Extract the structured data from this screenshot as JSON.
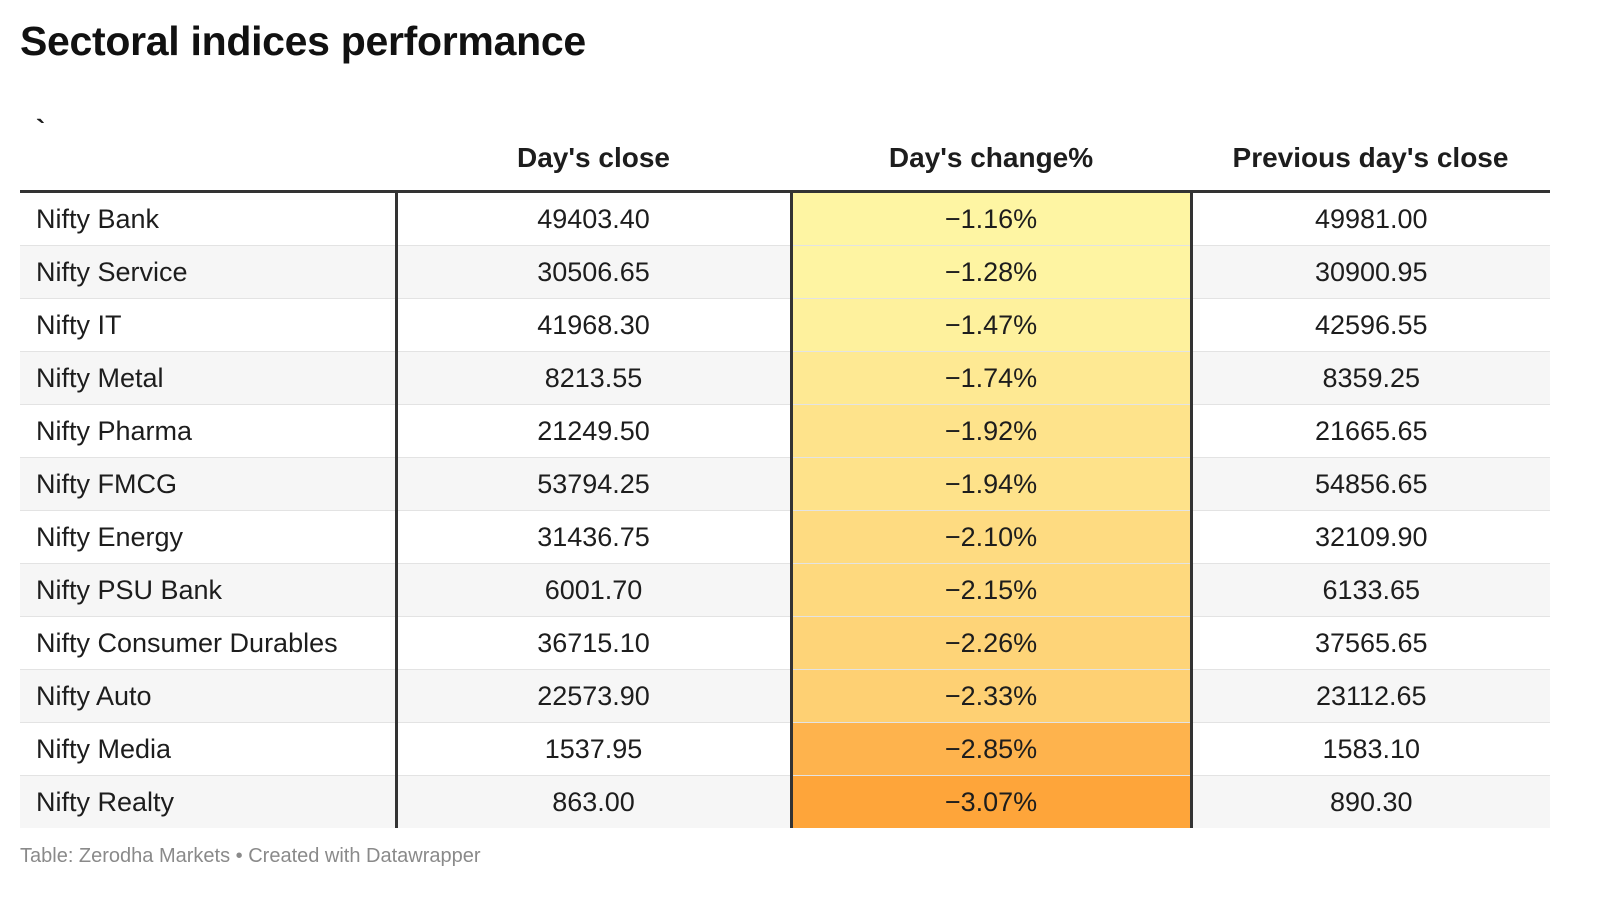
{
  "title": "Sectoral indices performance",
  "footer": "Table: Zerodha Markets • Created with Datawrapper",
  "chart_data": {
    "type": "table",
    "title": "Sectoral indices performance",
    "columns": [
      "`",
      "Day's close",
      "Day's change%",
      "Previous day's close"
    ],
    "rows": [
      {
        "name": "Nifty Bank",
        "close": "49403.40",
        "change": "−1.16%",
        "change_value": -1.16,
        "prev": "49981.00"
      },
      {
        "name": "Nifty Service",
        "close": "30506.65",
        "change": "−1.28%",
        "change_value": -1.28,
        "prev": "30900.95"
      },
      {
        "name": "Nifty IT",
        "close": "41968.30",
        "change": "−1.47%",
        "change_value": -1.47,
        "prev": "42596.55"
      },
      {
        "name": "Nifty Metal",
        "close": "8213.55",
        "change": "−1.74%",
        "change_value": -1.74,
        "prev": "8359.25"
      },
      {
        "name": "Nifty Pharma",
        "close": "21249.50",
        "change": "−1.92%",
        "change_value": -1.92,
        "prev": "21665.65"
      },
      {
        "name": "Nifty FMCG",
        "close": "53794.25",
        "change": "−1.94%",
        "change_value": -1.94,
        "prev": "54856.65"
      },
      {
        "name": "Nifty Energy",
        "close": "31436.75",
        "change": "−2.10%",
        "change_value": -2.1,
        "prev": "32109.90"
      },
      {
        "name": "Nifty PSU Bank",
        "close": "6001.70",
        "change": "−2.15%",
        "change_value": -2.15,
        "prev": "6133.65"
      },
      {
        "name": "Nifty Consumer Durables",
        "close": "36715.10",
        "change": "−2.26%",
        "change_value": -2.26,
        "prev": "37565.65"
      },
      {
        "name": "Nifty Auto",
        "close": "22573.90",
        "change": "−2.33%",
        "change_value": -2.33,
        "prev": "23112.65"
      },
      {
        "name": "Nifty Media",
        "close": "1537.95",
        "change": "−2.85%",
        "change_value": -2.85,
        "prev": "1583.10"
      },
      {
        "name": "Nifty Realty",
        "close": "863.00",
        "change": "−3.07%",
        "change_value": -3.07,
        "prev": "890.30"
      }
    ],
    "heatmap_colors": {
      "light": "#fef5a3",
      "dark": "#fea53a"
    }
  }
}
